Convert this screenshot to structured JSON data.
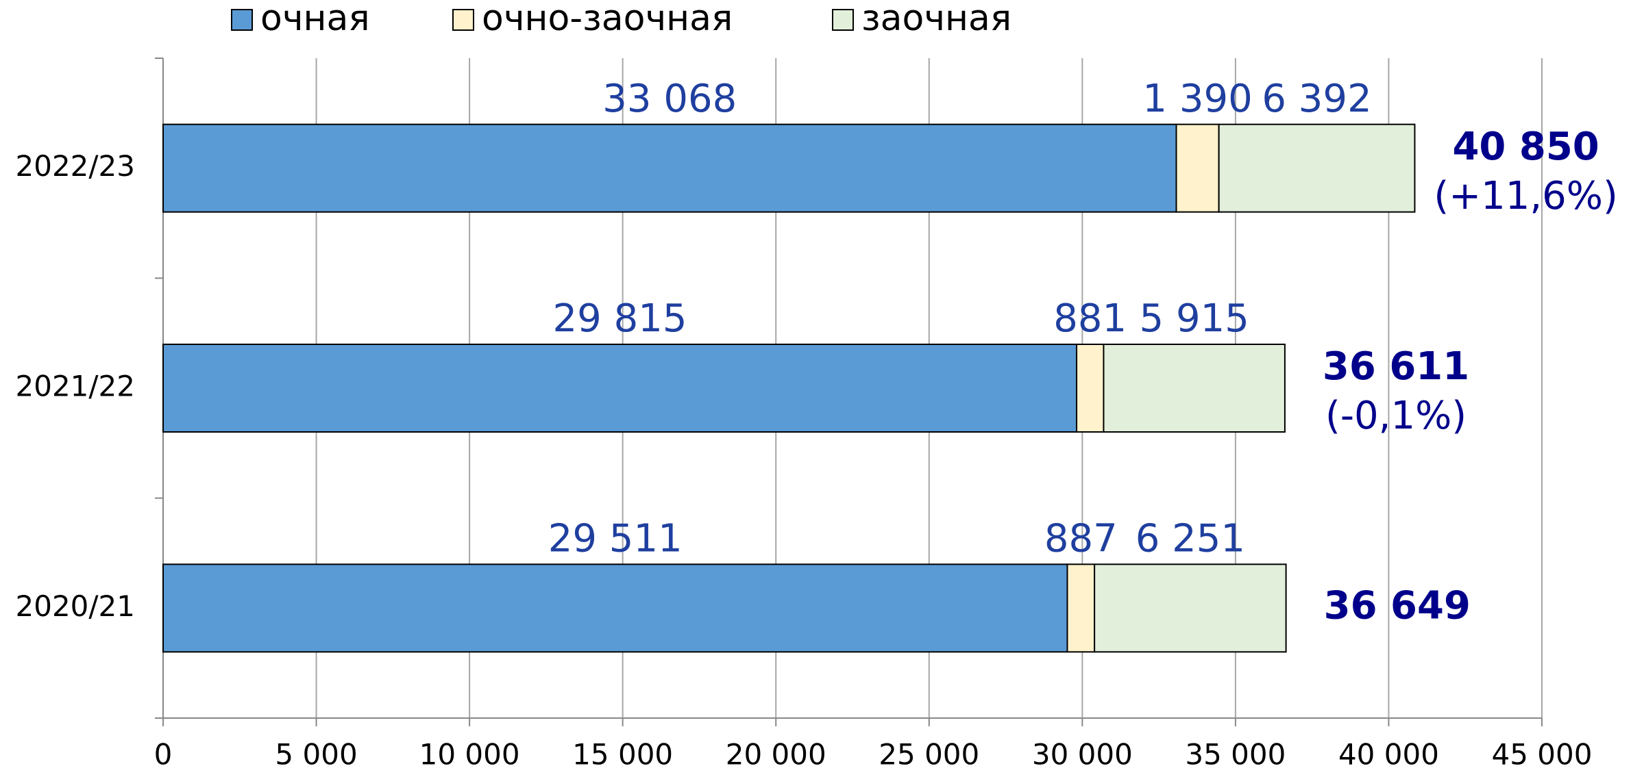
{
  "chart_data": {
    "type": "stacked-bar-horizontal",
    "categories": [
      "2022/23",
      "2021/22",
      "2020/21"
    ],
    "series": [
      {
        "name": "очная",
        "color": "#5b9bd5",
        "values": [
          33068,
          29815,
          29511
        ],
        "value_labels": [
          "33 068",
          "29 815",
          "29 511"
        ]
      },
      {
        "name": "очно-заочная",
        "color": "#fff2cc",
        "values": [
          1390,
          881,
          887
        ],
        "value_labels": [
          "1 390",
          "881",
          "887"
        ]
      },
      {
        "name": "заочная",
        "color": "#e2efda",
        "values": [
          6392,
          5915,
          6251
        ],
        "value_labels": [
          "6 392",
          "5 915",
          "6 251"
        ]
      }
    ],
    "totals": [
      40850,
      36611,
      36649
    ],
    "total_labels": [
      "40 850",
      "36 611",
      "36 649"
    ],
    "changes": [
      "(+11,6%)",
      "(-0,1%)",
      null
    ],
    "xlim": [
      0,
      45000
    ],
    "xticks": [
      0,
      {
        "value": 5000,
        "label": "5 000"
      },
      {
        "value": 10000,
        "label": "10 000"
      },
      {
        "value": 15000,
        "label": "15 000"
      },
      {
        "value": 20000,
        "label": "20 000"
      },
      {
        "value": 25000,
        "label": "25 000"
      },
      {
        "value": 30000,
        "label": "30 000"
      },
      {
        "value": 35000,
        "label": "35 000"
      },
      {
        "value": 40000,
        "label": "40 000"
      },
      {
        "value": 45000,
        "label": "45 000"
      }
    ],
    "grid": true,
    "legend": "top"
  }
}
